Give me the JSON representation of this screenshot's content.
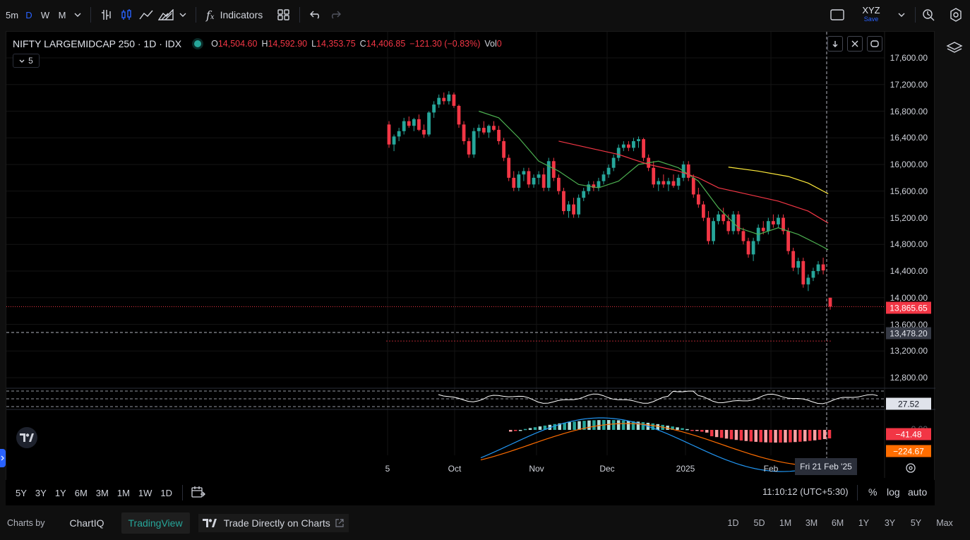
{
  "toolbar": {
    "intervals": [
      "5m",
      "D",
      "W",
      "M"
    ],
    "active_interval": "D",
    "indicators_label": "Indicators",
    "layout_name": "XYZ",
    "save_label": "Save"
  },
  "legend": {
    "symbol": "NIFTY LARGEMIDCAP 250 · 1D · IDX",
    "o_label": "O",
    "o_value": "14,504.60",
    "h_label": "H",
    "h_value": "14,592.90",
    "l_label": "L",
    "l_value": "14,353.75",
    "c_label": "C",
    "c_value": "14,406.85",
    "change": "−121.30 (−0.83%)",
    "vol_label": "Vol",
    "vol_value": "0",
    "indicator_count": "5"
  },
  "price_axis": {
    "ticks": [
      "17,600.00",
      "17,200.00",
      "16,800.00",
      "16,400.00",
      "16,000.00",
      "15,600.00",
      "15,200.00",
      "14,800.00",
      "14,400.00",
      "14,000.00",
      "13,600.00",
      "13,200.00",
      "12,800.00"
    ],
    "last_price": "13,865.65",
    "crosshair_price": "13,478.20",
    "rsi_value": "27.52",
    "macd_hist": "−41.48",
    "macd_signal": "−224.67",
    "macd_zero": "0.00"
  },
  "time_axis": {
    "ticks": [
      "5",
      "Oct",
      "Nov",
      "Dec",
      "2025",
      "Feb"
    ],
    "crosshair_date": "Fri 21 Feb '25"
  },
  "timeframes": [
    "5Y",
    "3Y",
    "1Y",
    "6M",
    "3M",
    "1M",
    "1W",
    "1D"
  ],
  "status": {
    "clock": "11:10:12 (UTC+5:30)",
    "percent_label": "%",
    "log_label": "log",
    "auto_label": "auto"
  },
  "footer": {
    "charts_by": "Charts by",
    "providers": [
      "ChartIQ",
      "TradingView"
    ],
    "active_provider": "TradingView",
    "trade_label": "Trade Directly on Charts",
    "ranges": [
      "1D",
      "5D",
      "1M",
      "3M",
      "6M",
      "1Y",
      "3Y",
      "5Y",
      "Max"
    ]
  },
  "colors": {
    "up": "#26a69a",
    "down": "#f23645",
    "ma_green": "#4caf50",
    "ma_red": "#f23645",
    "ma_yellow": "#ffeb3b",
    "macd_line": "#2196f3",
    "signal_line": "#ff6d00",
    "rsi_line": "#ffffff"
  },
  "chart_data": {
    "type": "candlestick",
    "title": "NIFTY LARGEMIDCAP 250",
    "ylim": [
      12600,
      17800
    ],
    "series": [
      {
        "name": "price",
        "candles": [
          [
            16600,
            16650,
            16250,
            16300
          ],
          [
            16300,
            16450,
            16200,
            16420
          ],
          [
            16420,
            16550,
            16350,
            16500
          ],
          [
            16500,
            16700,
            16450,
            16650
          ],
          [
            16650,
            16720,
            16550,
            16580
          ],
          [
            16580,
            16700,
            16500,
            16680
          ],
          [
            16680,
            16750,
            16500,
            16520
          ],
          [
            16520,
            16600,
            16400,
            16450
          ],
          [
            16450,
            16800,
            16420,
            16780
          ],
          [
            16780,
            16950,
            16700,
            16900
          ],
          [
            16900,
            17050,
            16850,
            17000
          ],
          [
            17000,
            17080,
            16900,
            16950
          ],
          [
            16950,
            17100,
            16900,
            17050
          ],
          [
            17050,
            17080,
            16850,
            16880
          ],
          [
            16880,
            16900,
            16550,
            16600
          ],
          [
            16600,
            16650,
            16300,
            16350
          ],
          [
            16350,
            16400,
            16100,
            16150
          ],
          [
            16150,
            16550,
            16100,
            16500
          ],
          [
            16500,
            16600,
            16400,
            16550
          ],
          [
            16550,
            16650,
            16450,
            16480
          ],
          [
            16480,
            16600,
            16400,
            16580
          ],
          [
            16580,
            16650,
            16500,
            16520
          ],
          [
            16520,
            16580,
            16300,
            16350
          ],
          [
            16350,
            16400,
            16050,
            16100
          ],
          [
            16100,
            16150,
            15750,
            15800
          ],
          [
            15800,
            15900,
            15600,
            15650
          ],
          [
            15650,
            15900,
            15600,
            15850
          ],
          [
            15850,
            15950,
            15750,
            15900
          ],
          [
            15900,
            15950,
            15650,
            15700
          ],
          [
            15700,
            15850,
            15650,
            15800
          ],
          [
            15800,
            15900,
            15700,
            15850
          ],
          [
            15850,
            15950,
            15600,
            15650
          ],
          [
            15650,
            16100,
            15600,
            16050
          ],
          [
            16050,
            16100,
            15750,
            15800
          ],
          [
            15800,
            15850,
            15550,
            15600
          ],
          [
            15600,
            15650,
            15250,
            15300
          ],
          [
            15300,
            15450,
            15200,
            15400
          ],
          [
            15400,
            15500,
            15200,
            15250
          ],
          [
            15250,
            15550,
            15200,
            15500
          ],
          [
            15500,
            15650,
            15450,
            15600
          ],
          [
            15600,
            15750,
            15550,
            15700
          ],
          [
            15700,
            15750,
            15600,
            15650
          ],
          [
            15650,
            15800,
            15600,
            15750
          ],
          [
            15750,
            15900,
            15700,
            15850
          ],
          [
            15850,
            16000,
            15800,
            15950
          ],
          [
            15950,
            16150,
            15900,
            16100
          ],
          [
            16100,
            16300,
            16050,
            16250
          ],
          [
            16250,
            16350,
            16200,
            16300
          ],
          [
            16300,
            16350,
            16200,
            16250
          ],
          [
            16250,
            16400,
            16200,
            16350
          ],
          [
            16350,
            16420,
            16250,
            16380
          ],
          [
            16380,
            16400,
            16050,
            16100
          ],
          [
            16100,
            16150,
            15900,
            15950
          ],
          [
            15950,
            16050,
            15650,
            15700
          ],
          [
            15700,
            15800,
            15600,
            15750
          ],
          [
            15750,
            15850,
            15650,
            15700
          ],
          [
            15700,
            15800,
            15600,
            15750
          ],
          [
            15750,
            15850,
            15650,
            15680
          ],
          [
            15680,
            15850,
            15620,
            15800
          ],
          [
            15800,
            16050,
            15750,
            16000
          ],
          [
            16000,
            16050,
            15750,
            15800
          ],
          [
            15800,
            15850,
            15500,
            15550
          ],
          [
            15550,
            15650,
            15350,
            15400
          ],
          [
            15400,
            15450,
            15150,
            15200
          ],
          [
            15200,
            15300,
            14800,
            14850
          ],
          [
            14850,
            15200,
            14800,
            15150
          ],
          [
            15150,
            15300,
            15100,
            15250
          ],
          [
            15250,
            15350,
            15100,
            15150
          ],
          [
            15150,
            15250,
            14950,
            15000
          ],
          [
            15000,
            15300,
            14950,
            15250
          ],
          [
            15250,
            15300,
            14950,
            15000
          ],
          [
            15000,
            15050,
            14800,
            14850
          ],
          [
            14850,
            14900,
            14600,
            14650
          ],
          [
            14650,
            14900,
            14550,
            14850
          ],
          [
            14850,
            15100,
            14800,
            15050
          ],
          [
            15050,
            15150,
            14950,
            15000
          ],
          [
            15000,
            15200,
            14950,
            15150
          ],
          [
            15150,
            15250,
            15050,
            15100
          ],
          [
            15100,
            15250,
            15050,
            15200
          ],
          [
            15200,
            15250,
            14950,
            15000
          ],
          [
            15000,
            15050,
            14650,
            14700
          ],
          [
            14700,
            14750,
            14400,
            14450
          ],
          [
            14450,
            14600,
            14350,
            14550
          ],
          [
            14550,
            14600,
            14150,
            14200
          ],
          [
            14200,
            14350,
            14100,
            14300
          ],
          [
            14300,
            14450,
            14250,
            14400
          ],
          [
            14400,
            14550,
            14350,
            14500
          ],
          [
            14500,
            14600,
            14350,
            14410
          ],
          [
            14000,
            14000,
            13820,
            13866
          ]
        ]
      }
    ],
    "overlays": [
      {
        "name": "ma_short",
        "color": "#4caf50",
        "values": [
          [
            18,
            16800
          ],
          [
            22,
            16700
          ],
          [
            26,
            16400
          ],
          [
            30,
            16050
          ],
          [
            34,
            15900
          ],
          [
            38,
            15700
          ],
          [
            42,
            15650
          ],
          [
            46,
            15750
          ],
          [
            50,
            16000
          ],
          [
            54,
            16050
          ],
          [
            58,
            15950
          ],
          [
            62,
            15750
          ],
          [
            66,
            15350
          ],
          [
            70,
            15050
          ],
          [
            74,
            14950
          ],
          [
            78,
            15050
          ],
          [
            82,
            14950
          ],
          [
            86,
            14800
          ],
          [
            88,
            14720
          ]
        ]
      },
      {
        "name": "ma_mid",
        "color": "#f23645",
        "values": [
          [
            34,
            16350
          ],
          [
            40,
            16250
          ],
          [
            46,
            16150
          ],
          [
            52,
            16000
          ],
          [
            58,
            15900
          ],
          [
            62,
            15800
          ],
          [
            66,
            15650
          ],
          [
            72,
            15550
          ],
          [
            78,
            15450
          ],
          [
            84,
            15300
          ],
          [
            88,
            15120
          ]
        ]
      },
      {
        "name": "ma_long",
        "color": "#ffeb3b",
        "values": [
          [
            68,
            15960
          ],
          [
            74,
            15900
          ],
          [
            80,
            15820
          ],
          [
            84,
            15720
          ],
          [
            88,
            15560
          ]
        ]
      }
    ],
    "x_labels": [
      "5",
      "Oct",
      "Nov",
      "Dec",
      "2025",
      "Feb"
    ]
  }
}
